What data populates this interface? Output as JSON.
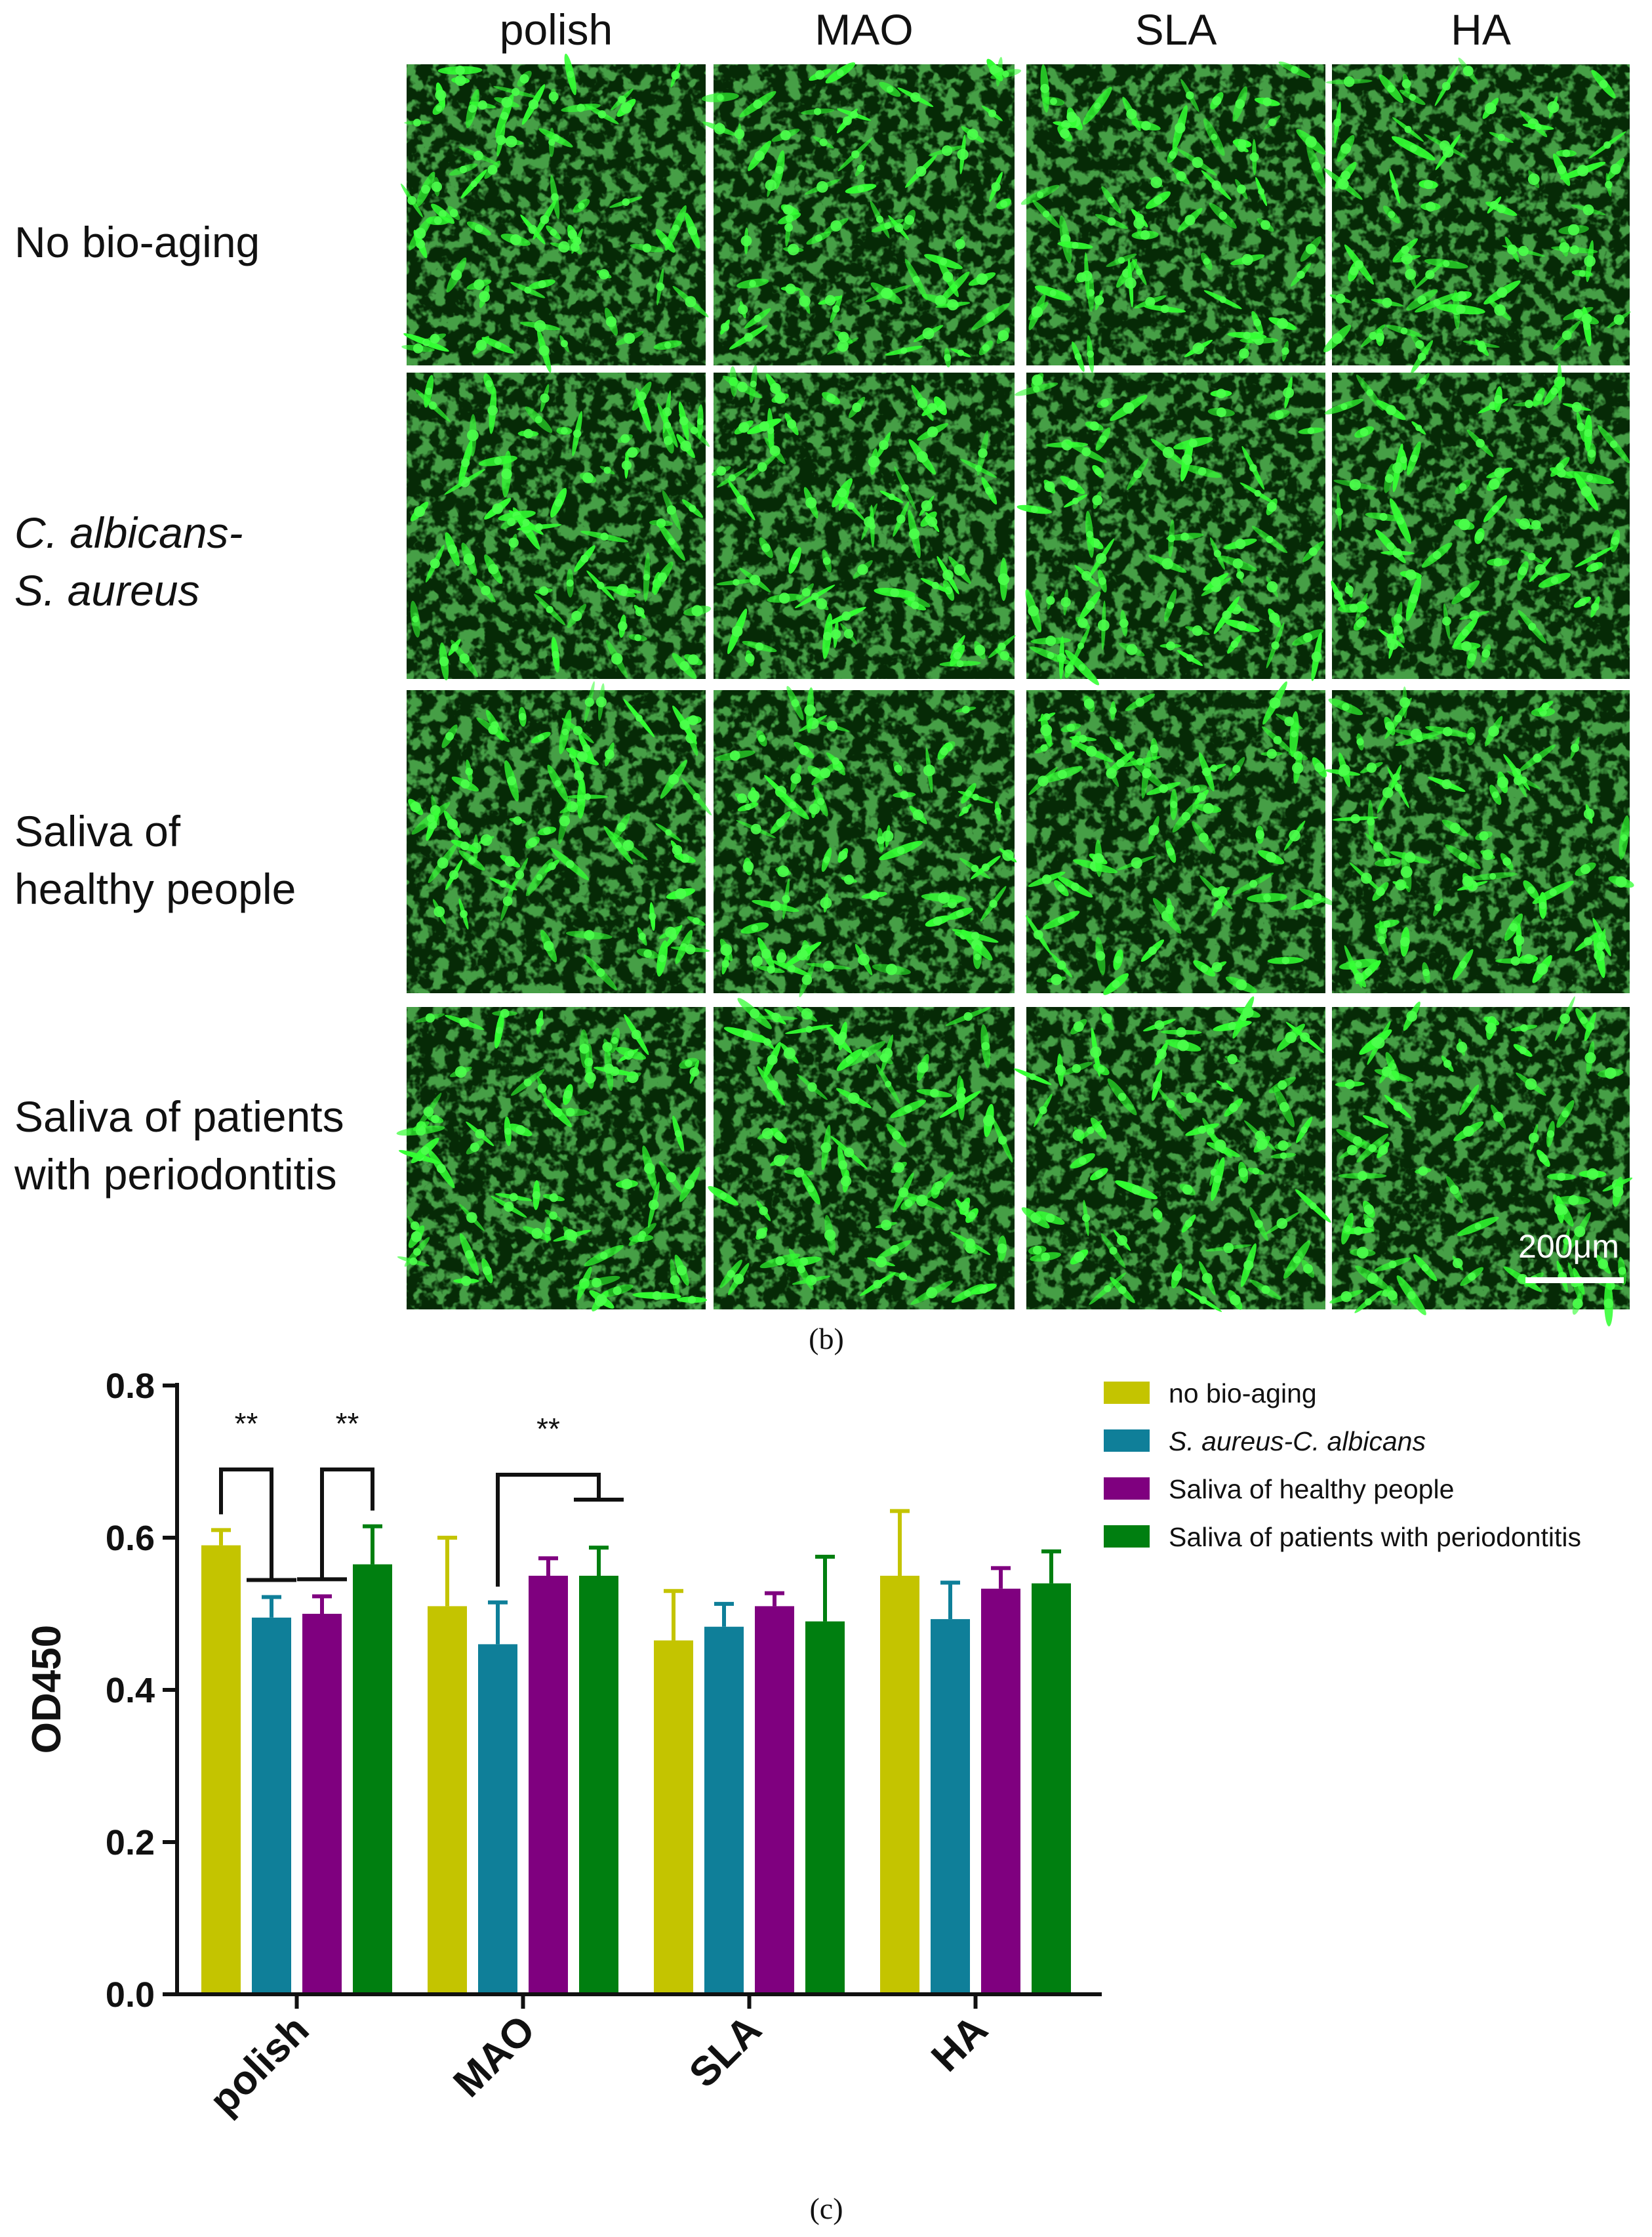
{
  "micrographs": {
    "column_labels": [
      "polish",
      "MAO",
      "SLA",
      "HA"
    ],
    "row_labels": [
      [
        "No bio-aging"
      ],
      [
        "C. albicans-",
        "S. aureus"
      ],
      [
        "Saliva of",
        "healthy people"
      ],
      [
        "Saliva of patients",
        "with periodontitis"
      ]
    ],
    "row_label_italic": [
      false,
      true,
      false,
      false
    ],
    "scale_bar_label": "200μm",
    "panel_label": "(b)",
    "cell_color": "#33ff33"
  },
  "chart_data": {
    "type": "bar",
    "categories": [
      "polish",
      "MAO",
      "SLA",
      "HA"
    ],
    "ylabel": "OD450",
    "xlabel": "",
    "ylim": [
      0,
      0.8
    ],
    "yticks": [
      "0.0",
      "0.2",
      "0.4",
      "0.6",
      "0.8"
    ],
    "grid": false,
    "legend_position": "top-right",
    "series": [
      {
        "name": "no bio-aging",
        "color": "#c4c400",
        "values": [
          0.59,
          0.51,
          0.465,
          0.55
        ],
        "error": [
          0.02,
          0.09,
          0.065,
          0.085
        ]
      },
      {
        "name": "S. aureus-C. albicans",
        "color": "#0f7f99",
        "values": [
          0.495,
          0.46,
          0.483,
          0.493
        ],
        "error": [
          0.027,
          0.055,
          0.03,
          0.048
        ]
      },
      {
        "name": "Saliva of healthy people",
        "color": "#7f007f",
        "values": [
          0.5,
          0.55,
          0.51,
          0.533
        ],
        "error": [
          0.023,
          0.023,
          0.017,
          0.027
        ]
      },
      {
        "name": "Saliva of patients with periodontitis",
        "color": "#007f10",
        "values": [
          0.565,
          0.55,
          0.49,
          0.54
        ],
        "error": [
          0.05,
          0.037,
          0.085,
          0.042
        ]
      }
    ],
    "legend_italic": [
      false,
      true,
      false,
      false
    ],
    "significance": [
      {
        "category": "polish",
        "label": "**",
        "from_series": 0,
        "to_series": 1
      },
      {
        "category": "polish",
        "label": "**",
        "from_series": 3,
        "to_series": 2
      },
      {
        "category": "MAO",
        "label": "**",
        "from_series": 1,
        "to_series": 3
      }
    ],
    "panel_label": "(c)"
  }
}
